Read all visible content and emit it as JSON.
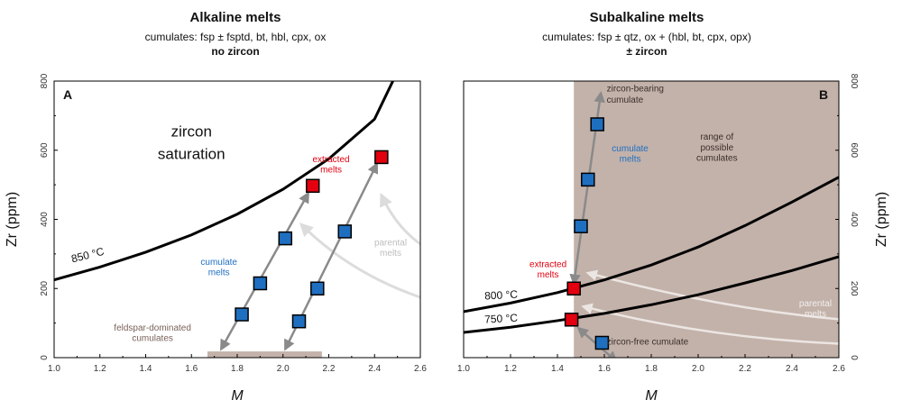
{
  "chart_data": [
    {
      "type": "scatter",
      "panel_label": "A",
      "title": "Alkaline melts",
      "subtitle": "cumulates: fsp ± fsptd, bt, hbl, cpx, ox",
      "subtitle2": "no zircon",
      "xlabel": "M",
      "ylabel": "Zr (ppm)",
      "xlim": [
        1.0,
        2.6
      ],
      "ylim": [
        0,
        800
      ],
      "xticks": [
        "1.0",
        "1.2",
        "1.4",
        "1.6",
        "1.8",
        "2.0",
        "2.2",
        "2.4",
        "2.6"
      ],
      "yticks": [
        "0",
        "200",
        "400",
        "600",
        "800"
      ],
      "saturation_curves": [
        {
          "label": "850 °C",
          "x": [
            1.0,
            1.2,
            1.4,
            1.6,
            1.8,
            2.0,
            2.2,
            2.4,
            2.48
          ],
          "y": [
            225,
            262,
            305,
            355,
            415,
            487,
            575,
            690,
            800
          ]
        }
      ],
      "cumulate_points": [
        {
          "x": 1.82,
          "y": 125
        },
        {
          "x": 1.9,
          "y": 215
        },
        {
          "x": 2.01,
          "y": 345
        },
        {
          "x": 2.07,
          "y": 105
        },
        {
          "x": 2.15,
          "y": 200
        },
        {
          "x": 2.27,
          "y": 365
        }
      ],
      "extracted_points": [
        {
          "x": 2.13,
          "y": 497
        },
        {
          "x": 2.43,
          "y": 580
        }
      ],
      "shaded_region": {
        "x": [
          1.67,
          2.17
        ],
        "y": [
          0,
          18
        ],
        "label": "feldspar-dominated cumulates"
      },
      "annotations": [
        {
          "text": "zircon",
          "x": 1.6,
          "y": 640
        },
        {
          "text": "saturation",
          "x": 1.6,
          "y": 575
        },
        {
          "text": "cumulate",
          "x": 1.72,
          "y": 268
        },
        {
          "text": "melts",
          "x": 1.72,
          "y": 238
        },
        {
          "text": "extracted",
          "x": 2.21,
          "y": 565
        },
        {
          "text": "melts",
          "x": 2.21,
          "y": 535
        },
        {
          "text": "parental",
          "x": 2.47,
          "y": 325
        },
        {
          "text": "melts",
          "x": 2.47,
          "y": 295
        },
        {
          "text": "feldspar-dominated",
          "x": 1.43,
          "y": 78
        },
        {
          "text": "cumulates",
          "x": 1.43,
          "y": 48
        }
      ]
    },
    {
      "type": "scatter",
      "panel_label": "B",
      "title": "Subalkaline melts",
      "subtitle": "cumulates: fsp ± qtz, ox + (hbl, bt, cpx, opx)",
      "subtitle2": "± zircon",
      "xlabel": "M",
      "ylabel": "Zr (ppm)",
      "xlim": [
        1.0,
        2.6
      ],
      "ylim": [
        0,
        800
      ],
      "xticks": [
        "1.0",
        "1.2",
        "1.4",
        "1.6",
        "1.8",
        "2.0",
        "2.2",
        "2.4",
        "2.6"
      ],
      "yticks": [
        "0",
        "200",
        "400",
        "600",
        "800"
      ],
      "saturation_curves": [
        {
          "label": "800 °C",
          "x": [
            1.0,
            1.2,
            1.4,
            1.6,
            1.8,
            2.0,
            2.2,
            2.4,
            2.6
          ],
          "y": [
            133,
            158,
            188,
            225,
            268,
            320,
            382,
            450,
            522
          ]
        },
        {
          "label": "750 °C",
          "x": [
            1.0,
            1.2,
            1.4,
            1.6,
            1.8,
            2.0,
            2.2,
            2.4,
            2.6
          ],
          "y": [
            73,
            88,
            107,
            128,
            153,
            182,
            216,
            252,
            292
          ]
        }
      ],
      "cumulate_points": [
        {
          "x": 1.59,
          "y": 43
        },
        {
          "x": 1.5,
          "y": 380
        },
        {
          "x": 1.53,
          "y": 515
        },
        {
          "x": 1.57,
          "y": 675
        }
      ],
      "extracted_points": [
        {
          "x": 1.47,
          "y": 200
        },
        {
          "x": 1.46,
          "y": 110
        }
      ],
      "shaded_region": {
        "x": [
          1.47,
          2.6
        ],
        "y": [
          0,
          800
        ],
        "label": "range of possible cumulates"
      },
      "annotations": [
        {
          "text": "zircon-bearing",
          "x": 1.61,
          "y": 770
        },
        {
          "text": "cumulate",
          "x": 1.61,
          "y": 738
        },
        {
          "text": "cumulate",
          "x": 1.71,
          "y": 597
        },
        {
          "text": "melts",
          "x": 1.71,
          "y": 567
        },
        {
          "text": "range of",
          "x": 2.08,
          "y": 630
        },
        {
          "text": "possible",
          "x": 2.08,
          "y": 600
        },
        {
          "text": "cumulates",
          "x": 2.08,
          "y": 570
        },
        {
          "text": "extracted",
          "x": 1.36,
          "y": 262
        },
        {
          "text": "melts",
          "x": 1.36,
          "y": 232
        },
        {
          "text": "parental",
          "x": 2.5,
          "y": 148
        },
        {
          "text": "melts",
          "x": 2.5,
          "y": 118
        },
        {
          "text": "zircon-free cumulate",
          "x": 1.61,
          "y": 38
        }
      ]
    }
  ]
}
